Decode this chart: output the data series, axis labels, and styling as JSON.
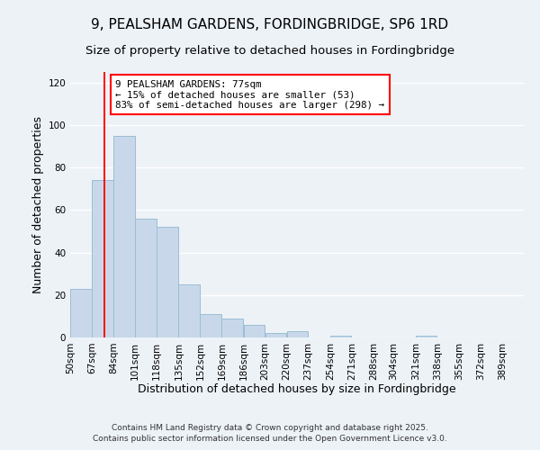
{
  "title": "9, PEALSHAM GARDENS, FORDINGBRIDGE, SP6 1RD",
  "subtitle": "Size of property relative to detached houses in Fordingbridge",
  "xlabel": "Distribution of detached houses by size in Fordingbridge",
  "ylabel": "Number of detached properties",
  "bar_color": "#c8d8ea",
  "bar_edgecolor": "#9bbdd4",
  "vline_x": 77,
  "vline_color": "red",
  "categories": [
    "50sqm",
    "67sqm",
    "84sqm",
    "101sqm",
    "118sqm",
    "135sqm",
    "152sqm",
    "169sqm",
    "186sqm",
    "203sqm",
    "220sqm",
    "237sqm",
    "254sqm",
    "271sqm",
    "288sqm",
    "304sqm",
    "321sqm",
    "338sqm",
    "355sqm",
    "372sqm",
    "389sqm"
  ],
  "bin_edges": [
    50,
    67,
    84,
    101,
    118,
    135,
    152,
    169,
    186,
    203,
    220,
    237,
    254,
    271,
    288,
    304,
    321,
    338,
    355,
    372,
    389
  ],
  "bin_width": 17,
  "values": [
    23,
    74,
    95,
    56,
    52,
    25,
    11,
    9,
    6,
    2,
    3,
    0,
    1,
    0,
    0,
    0,
    1,
    0,
    0,
    0,
    0
  ],
  "ylim": [
    0,
    125
  ],
  "yticks": [
    0,
    20,
    40,
    60,
    80,
    100,
    120
  ],
  "annotation_title": "9 PEALSHAM GARDENS: 77sqm",
  "annotation_line1": "← 15% of detached houses are smaller (53)",
  "annotation_line2": "83% of semi-detached houses are larger (298) →",
  "annotation_box_color": "white",
  "annotation_box_edgecolor": "red",
  "footer1": "Contains HM Land Registry data © Crown copyright and database right 2025.",
  "footer2": "Contains public sector information licensed under the Open Government Licence v3.0.",
  "background_color": "#edf2f7",
  "grid_color": "white",
  "title_fontsize": 11,
  "subtitle_fontsize": 9.5,
  "axis_label_fontsize": 9,
  "tick_fontsize": 7.5,
  "annotation_fontsize": 7.8,
  "footer_fontsize": 6.5
}
